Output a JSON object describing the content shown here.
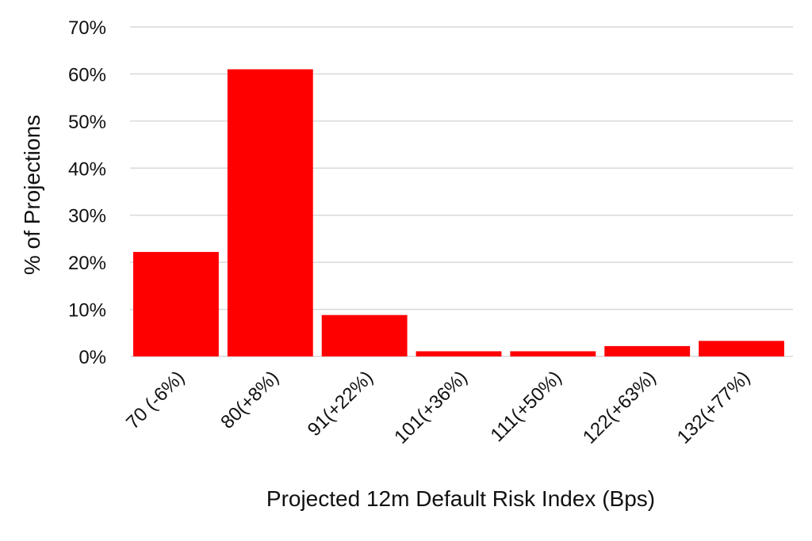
{
  "chart_data": {
    "type": "bar",
    "categories": [
      "70 (-6%)",
      "80(+8%)",
      "91(+22%)",
      "101(+36%)",
      "111(+50%)",
      "122(+63%)",
      "132(+77%)"
    ],
    "values": [
      22.2,
      61.0,
      8.8,
      1.1,
      1.1,
      2.2,
      3.3
    ],
    "xlabel": "Projected 12m Default Risk Index (Bps)",
    "ylabel": "% of Projections",
    "ylim": [
      0,
      70
    ],
    "yticks": [
      "0%",
      "10%",
      "20%",
      "30%",
      "40%",
      "50%",
      "60%",
      "70%"
    ],
    "grid": true,
    "legend": "none",
    "bar_color": "#ff0000"
  }
}
